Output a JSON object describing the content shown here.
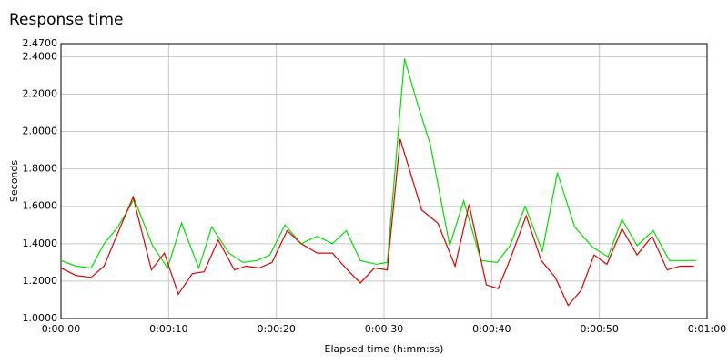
{
  "chart_data": {
    "type": "line",
    "title": "Response time",
    "x_label": "Elapsed time (h:mm:ss)",
    "y_label": "Seconds",
    "xlim": [
      0,
      60
    ],
    "ylim": [
      1,
      2.47
    ],
    "grid": true,
    "xticks": [
      {
        "value": 0,
        "label": "0:00:00"
      },
      {
        "value": 10,
        "label": "0:00:10"
      },
      {
        "value": 20,
        "label": "0:00:20"
      },
      {
        "value": 30,
        "label": "0:00:30"
      },
      {
        "value": 40,
        "label": "0:00:40"
      },
      {
        "value": 50,
        "label": "0:00:50"
      },
      {
        "value": 60,
        "label": "0:01:00"
      }
    ],
    "yticks": [
      {
        "value": 1,
        "label": "1.0000"
      },
      {
        "value": 1.2,
        "label": "1.2000"
      },
      {
        "value": 1.4,
        "label": "1.4000"
      },
      {
        "value": 1.6,
        "label": "1.6000"
      },
      {
        "value": 1.8,
        "label": "1.8000"
      },
      {
        "value": 2,
        "label": "2.0000"
      },
      {
        "value": 2.2,
        "label": "2.2000"
      },
      {
        "value": 2.4,
        "label": "2.4000"
      },
      {
        "value": 2.47,
        "label": "2.4700"
      }
    ],
    "series": [
      {
        "color": "#00e000",
        "x": [
          0,
          1.4,
          2.8,
          4.0,
          5.3,
          6.8,
          8.5,
          9.9,
          11.2,
          12.8,
          14.0,
          15.6,
          16.9,
          18.2,
          19.4,
          20.8,
          22.3,
          23.8,
          25.2,
          26.5,
          27.8,
          29.3,
          30.3,
          31.9,
          33.1,
          34.3,
          36.1,
          37.4,
          39.0,
          40.5,
          41.7,
          43.1,
          44.7,
          46.1,
          47.7,
          49.4,
          50.8,
          52.1,
          53.5,
          55.0,
          56.5,
          59.0
        ],
        "values": [
          1.31,
          1.28,
          1.27,
          1.4,
          1.49,
          1.64,
          1.39,
          1.27,
          1.51,
          1.27,
          1.49,
          1.35,
          1.3,
          1.31,
          1.34,
          1.5,
          1.4,
          1.44,
          1.4,
          1.47,
          1.31,
          1.29,
          1.3,
          2.39,
          2.15,
          1.93,
          1.39,
          1.63,
          1.31,
          1.3,
          1.39,
          1.6,
          1.36,
          1.78,
          1.49,
          1.38,
          1.33,
          1.53,
          1.39,
          1.47,
          1.31,
          1.31
        ]
      },
      {
        "color": "#e00000",
        "x": [
          0,
          1.4,
          2.8,
          4.0,
          5.3,
          6.7,
          8.4,
          9.6,
          10.9,
          12.2,
          13.3,
          14.6,
          16.1,
          17.2,
          18.4,
          19.6,
          21.0,
          22.3,
          23.8,
          25.2,
          26.6,
          27.8,
          29.1,
          30.3,
          31.5,
          33.5,
          35.0,
          36.6,
          37.9,
          39.5,
          40.6,
          41.8,
          43.2,
          44.6,
          45.9,
          47.1,
          48.3,
          49.5,
          50.7,
          52.1,
          53.5,
          54.9,
          56.3,
          57.5,
          58.8
        ],
        "values": [
          1.27,
          1.23,
          1.22,
          1.28,
          1.46,
          1.65,
          1.26,
          1.35,
          1.13,
          1.24,
          1.25,
          1.42,
          1.26,
          1.28,
          1.27,
          1.3,
          1.47,
          1.4,
          1.35,
          1.35,
          1.26,
          1.19,
          1.27,
          1.26,
          1.96,
          1.58,
          1.51,
          1.28,
          1.61,
          1.18,
          1.16,
          1.33,
          1.55,
          1.31,
          1.22,
          1.07,
          1.15,
          1.34,
          1.29,
          1.48,
          1.34,
          1.44,
          1.26,
          1.28,
          1.28
        ]
      }
    ]
  }
}
